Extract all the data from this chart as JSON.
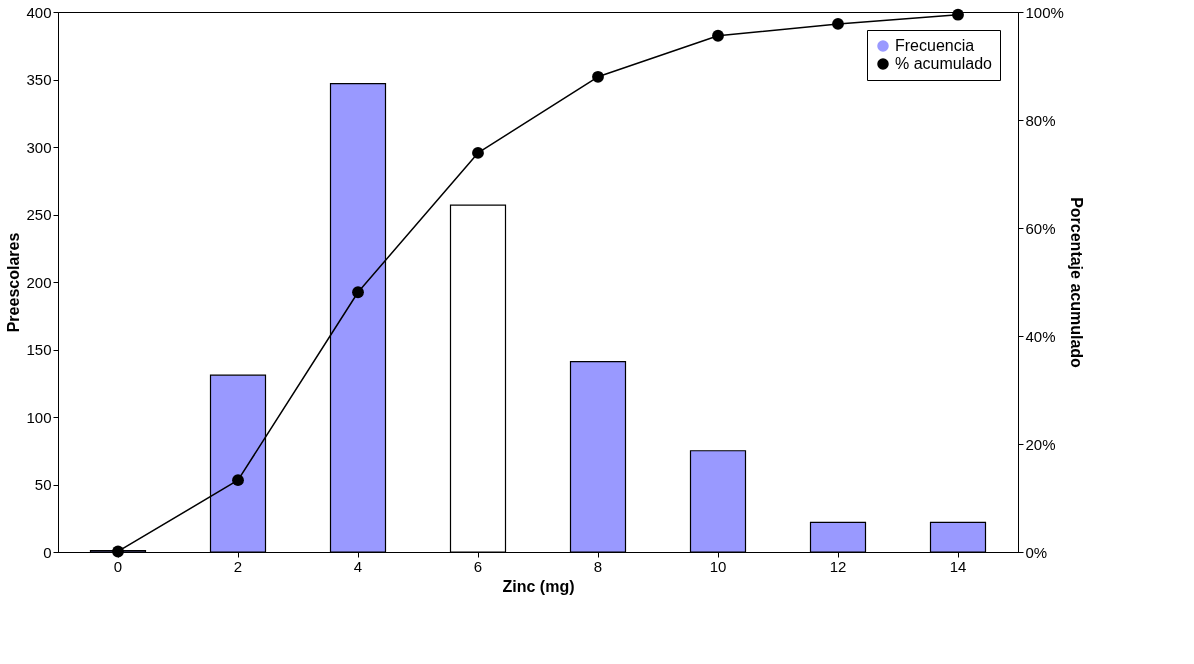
{
  "chart_data": {
    "type": "bar",
    "xlabel": "Zinc (mg)",
    "ylabel": "Preescolares",
    "y2label": "Porcentaje acumulado",
    "categories": [
      "0",
      "2",
      "4",
      "6",
      "8",
      "10",
      "12",
      "14"
    ],
    "series": [
      {
        "name": "Frecuencia",
        "color": "#9999ff",
        "colors": [
          "#9999ff",
          "#9999ff",
          "#9999ff",
          "#ffffff",
          "#9999ff",
          "#9999ff",
          "#9999ff",
          "#9999ff"
        ],
        "values": [
          1,
          131,
          347,
          257,
          141,
          75,
          22,
          22
        ]
      },
      {
        "name": "% acumulado",
        "type": "line",
        "axis": "y2",
        "color": "#000000",
        "marker": "circle",
        "values": [
          0.1,
          13.3,
          48.1,
          73.9,
          88,
          95.6,
          97.8,
          99.5
        ]
      }
    ],
    "ylim": [
      0,
      400
    ],
    "yticks": [
      0,
      50,
      100,
      150,
      200,
      250,
      300,
      350,
      400
    ],
    "y2lim": [
      0,
      100
    ],
    "y2ticks": [
      {
        "value": 0,
        "label": "0%"
      },
      {
        "value": 20,
        "label": "20%"
      },
      {
        "value": 40,
        "label": "40%"
      },
      {
        "value": 60,
        "label": "60%"
      },
      {
        "value": 80,
        "label": "80%"
      },
      {
        "value": 100,
        "label": "100%"
      }
    ],
    "grid": false,
    "legend": "top right"
  }
}
